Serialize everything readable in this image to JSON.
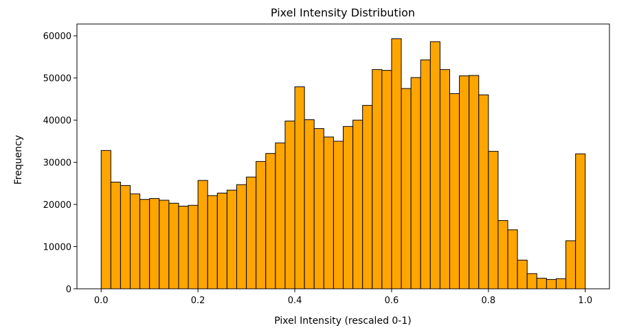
{
  "chart_data": {
    "type": "bar",
    "title": "Pixel Intensity Distribution",
    "xlabel": "Pixel Intensity (rescaled 0-1)",
    "ylabel": "Frequency",
    "xlim": [
      -0.05,
      1.05
    ],
    "ylim": [
      0,
      62800
    ],
    "bins": 50,
    "bin_range": [
      0,
      1
    ],
    "x_ticks": [
      {
        "value": 0.0,
        "label": "0.0"
      },
      {
        "value": 0.2,
        "label": "0.2"
      },
      {
        "value": 0.4,
        "label": "0.4"
      },
      {
        "value": 0.6,
        "label": "0.6"
      },
      {
        "value": 0.8,
        "label": "0.8"
      },
      {
        "value": 1.0,
        "label": "1.0"
      }
    ],
    "y_ticks": [
      {
        "value": 0,
        "label": "0"
      },
      {
        "value": 10000,
        "label": "10000"
      },
      {
        "value": 20000,
        "label": "20000"
      },
      {
        "value": 30000,
        "label": "30000"
      },
      {
        "value": 40000,
        "label": "40000"
      },
      {
        "value": 50000,
        "label": "50000"
      },
      {
        "value": 60000,
        "label": "60000"
      }
    ],
    "values": [
      32800,
      25300,
      24500,
      22500,
      21200,
      21400,
      21000,
      20300,
      19600,
      19800,
      25700,
      22100,
      22700,
      23400,
      24700,
      26500,
      30200,
      32100,
      34600,
      39800,
      47900,
      40100,
      38000,
      36000,
      35000,
      38500,
      40000,
      43500,
      52000,
      51800,
      59300,
      47500,
      50100,
      54300,
      58600,
      52000,
      46300,
      50500,
      50600,
      46000,
      32600,
      16200,
      14000,
      6800,
      3600,
      2500,
      2200,
      2400,
      11400,
      32000
    ],
    "grid": false,
    "colors": {
      "bar_fill": "#ffa500",
      "bar_edge": "#000000",
      "axes": "#000000"
    }
  }
}
